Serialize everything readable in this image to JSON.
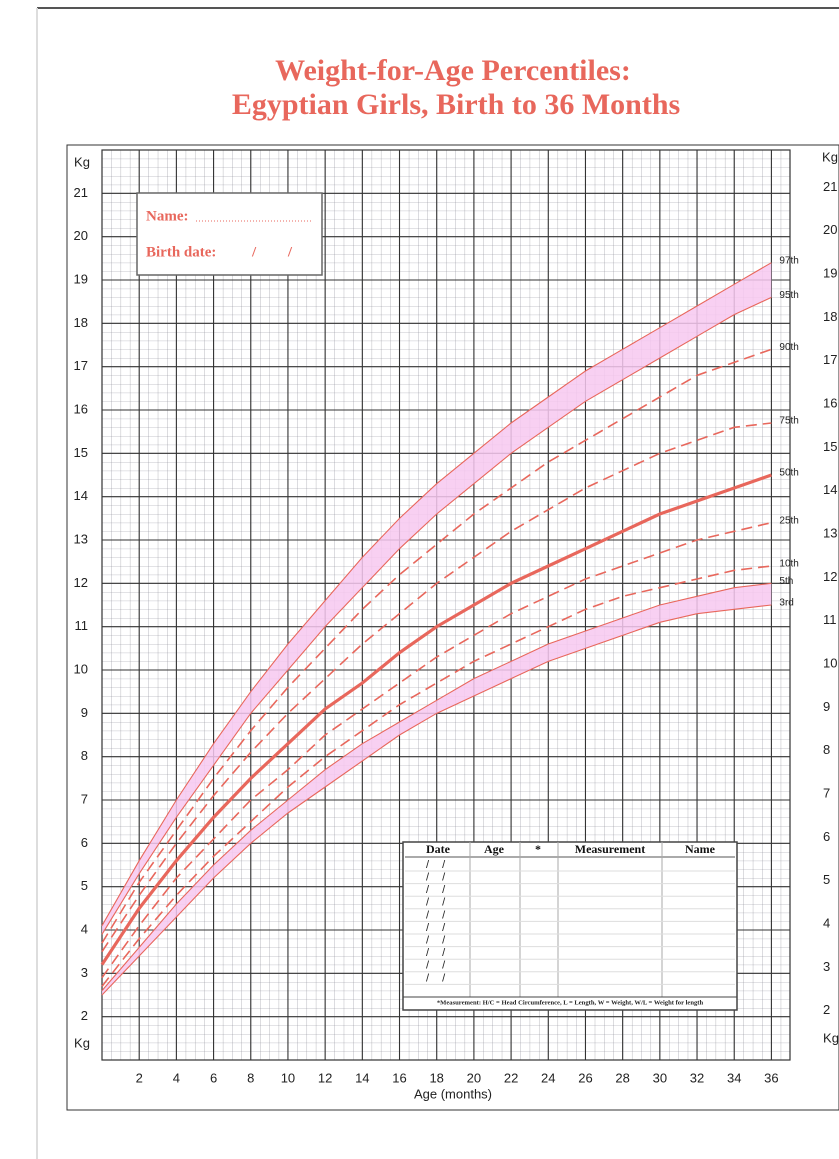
{
  "chart_data": {
    "type": "line",
    "title": [
      "Weight-for-Age Percentiles:",
      "Egyptian Girls, Birth to 36 Months"
    ],
    "x_label": "Age (months)",
    "y_label": "Kg",
    "x": [
      0,
      2,
      4,
      6,
      8,
      10,
      12,
      14,
      16,
      18,
      20,
      22,
      24,
      26,
      28,
      30,
      32,
      34,
      36
    ],
    "xlim": [
      0,
      37
    ],
    "xticks": [
      2,
      4,
      6,
      8,
      10,
      12,
      14,
      16,
      18,
      20,
      22,
      24,
      26,
      28,
      30,
      32,
      34,
      36
    ],
    "ylim": [
      1,
      22
    ],
    "yticks": [
      2,
      3,
      4,
      5,
      6,
      7,
      8,
      9,
      10,
      11,
      12,
      13,
      14,
      15,
      16,
      17,
      18,
      19,
      20,
      21
    ],
    "grid": true,
    "minor_grid": true,
    "band_color": "#f7c8f0",
    "bands": [
      [
        "97th",
        "95th"
      ],
      [
        "5th",
        "3rd"
      ]
    ],
    "series": [
      {
        "name": "97th",
        "color": "#e8675c",
        "style": "solid",
        "values": [
          4.1,
          5.6,
          7.0,
          8.3,
          9.5,
          10.6,
          11.6,
          12.6,
          13.5,
          14.3,
          15.0,
          15.7,
          16.3,
          16.9,
          17.4,
          17.9,
          18.4,
          18.9,
          19.4
        ]
      },
      {
        "name": "95th",
        "color": "#e8675c",
        "style": "solid",
        "values": [
          3.9,
          5.3,
          6.6,
          7.8,
          9.0,
          10.0,
          11.0,
          11.9,
          12.8,
          13.6,
          14.3,
          15.0,
          15.6,
          16.2,
          16.7,
          17.2,
          17.7,
          18.2,
          18.6
        ]
      },
      {
        "name": "90th",
        "color": "#e8675c",
        "style": "dashed",
        "values": [
          3.7,
          5.1,
          6.3,
          7.5,
          8.6,
          9.6,
          10.5,
          11.4,
          12.2,
          12.9,
          13.6,
          14.2,
          14.8,
          15.3,
          15.8,
          16.3,
          16.8,
          17.1,
          17.4
        ]
      },
      {
        "name": "75th",
        "color": "#e8675c",
        "style": "dashed",
        "values": [
          3.5,
          4.8,
          6.0,
          7.1,
          8.1,
          9.0,
          9.8,
          10.6,
          11.3,
          12.0,
          12.6,
          13.2,
          13.7,
          14.2,
          14.6,
          15.0,
          15.3,
          15.6,
          15.7
        ]
      },
      {
        "name": "50th",
        "color": "#e8675c",
        "style": "thick",
        "values": [
          3.2,
          4.5,
          5.6,
          6.6,
          7.5,
          8.3,
          9.1,
          9.7,
          10.4,
          11.0,
          11.5,
          12.0,
          12.4,
          12.8,
          13.2,
          13.6,
          13.9,
          14.2,
          14.5
        ]
      },
      {
        "name": "25th",
        "color": "#e8675c",
        "style": "dashed",
        "values": [
          2.9,
          4.1,
          5.2,
          6.1,
          7.0,
          7.7,
          8.5,
          9.1,
          9.7,
          10.3,
          10.8,
          11.3,
          11.7,
          12.1,
          12.4,
          12.7,
          13.0,
          13.2,
          13.4
        ]
      },
      {
        "name": "10th",
        "color": "#e8675c",
        "style": "dashed",
        "values": [
          2.7,
          3.8,
          4.8,
          5.7,
          6.5,
          7.3,
          8.0,
          8.6,
          9.2,
          9.7,
          10.2,
          10.6,
          11.0,
          11.4,
          11.7,
          11.9,
          12.1,
          12.3,
          12.4
        ]
      },
      {
        "name": "5th",
        "color": "#e8675c",
        "style": "solid",
        "values": [
          2.6,
          3.6,
          4.6,
          5.5,
          6.3,
          7.0,
          7.7,
          8.3,
          8.8,
          9.3,
          9.8,
          10.2,
          10.6,
          10.9,
          11.2,
          11.5,
          11.7,
          11.9,
          12.0
        ]
      },
      {
        "name": "3rd",
        "color": "#e8675c",
        "style": "solid",
        "values": [
          2.5,
          3.4,
          4.3,
          5.2,
          6.0,
          6.7,
          7.3,
          7.9,
          8.5,
          9.0,
          9.4,
          9.8,
          10.2,
          10.5,
          10.8,
          11.1,
          11.3,
          11.4,
          11.5
        ]
      }
    ]
  },
  "form": {
    "name_label": "Name:",
    "birth_label": "Birth date:",
    "date_slashes": "/ /",
    "table_headers": [
      "Date",
      "Age",
      "*",
      "Measurement",
      "Name"
    ],
    "row_count": 10,
    "footnote": "*Measurement: H/C = Head Circumference, L = Length, W = Weight, W/L = Weight for length"
  }
}
